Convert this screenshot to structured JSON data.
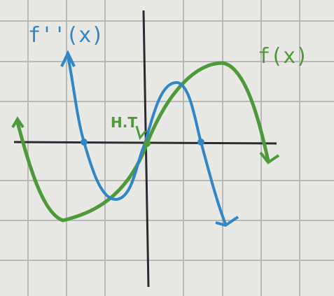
{
  "labels": {
    "second_derivative": "f''(x)",
    "function": "f(x)",
    "point": "H.T"
  }
}
